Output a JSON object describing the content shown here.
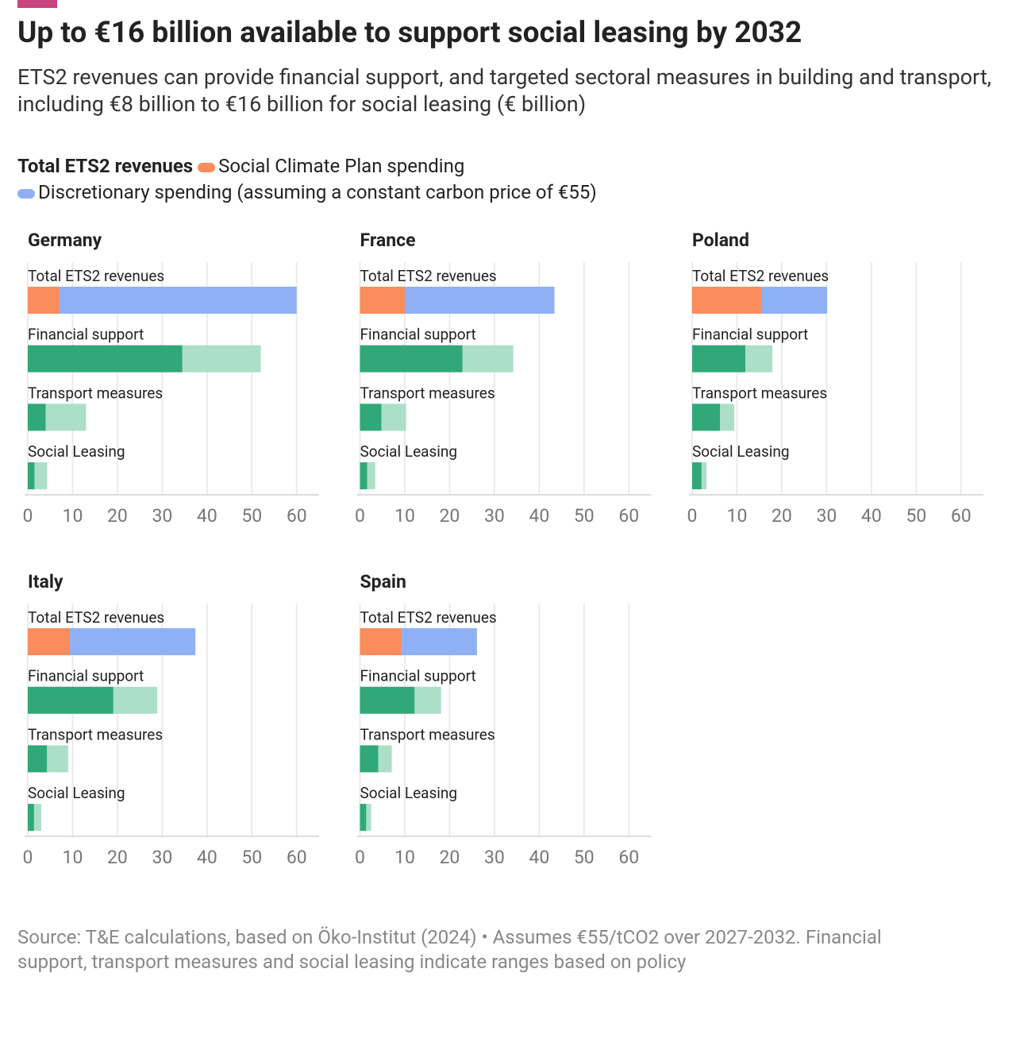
{
  "title": "Up to €16 billion available to support social leasing by 2032",
  "subtitle": "ETS2 revenues can provide financial support, and targeted sectoral measures in building and transport, including €8 billion to €16 billion for social leasing (€ billion)",
  "legend_title": "Total ETS2 revenues",
  "source": "Source: T&E calculations, based on Öko-Institut (2024) • Assumes €55/tCO2 over 2027-2032. Financial support, transport measures and social leasing indicate ranges based on policy",
  "chart_data": [
    {
      "type": "bar",
      "orientation": "horizontal",
      "title": "Germany",
      "categories": [
        "Total ETS2 revenues",
        "Financial support",
        "Transport measures",
        "Social Leasing"
      ],
      "series": [
        {
          "name": "Social Climate Plan spending",
          "color": "#fb8c5c",
          "values": [
            7,
            null,
            null,
            null
          ]
        },
        {
          "name": "Discretionary spending (assuming a constant carbon price of €55)",
          "color": "#8fb0f5",
          "values": [
            53,
            null,
            null,
            null
          ]
        },
        {
          "color": "#30a878",
          "values": [
            null,
            34.5,
            4,
            1.5
          ]
        },
        {
          "color": "#acdfc8",
          "values": [
            null,
            17.5,
            9,
            2.8
          ]
        }
      ],
      "xlim": [
        0,
        65
      ],
      "xticks": [
        0,
        10,
        20,
        30,
        40,
        50,
        60
      ],
      "grid": true
    },
    {
      "type": "bar",
      "orientation": "horizontal",
      "title": "France",
      "categories": [
        "Total ETS2 revenues",
        "Financial support",
        "Transport measures",
        "Social Leasing"
      ],
      "series": [
        {
          "name": "Social Climate Plan spending",
          "color": "#fb8c5c",
          "values": [
            10,
            null,
            null,
            null
          ]
        },
        {
          "name": "Discretionary spending (assuming a constant carbon price of €55)",
          "color": "#8fb0f5",
          "values": [
            33.4,
            null,
            null,
            null
          ]
        },
        {
          "color": "#30a878",
          "values": [
            null,
            22.9,
            4.8,
            1.6
          ]
        },
        {
          "color": "#acdfc8",
          "values": [
            null,
            11.3,
            5.5,
            1.8
          ]
        }
      ],
      "xlim": [
        0,
        65
      ],
      "xticks": [
        0,
        10,
        20,
        30,
        40,
        50,
        60
      ],
      "grid": true
    },
    {
      "type": "bar",
      "orientation": "horizontal",
      "title": "Poland",
      "categories": [
        "Total ETS2 revenues",
        "Financial support",
        "Transport measures",
        "Social Leasing"
      ],
      "series": [
        {
          "name": "Social Climate Plan spending",
          "color": "#fb8c5c",
          "values": [
            15.4,
            null,
            null,
            null
          ]
        },
        {
          "name": "Discretionary spending (assuming a constant carbon price of €55)",
          "color": "#8fb0f5",
          "values": [
            14.7,
            null,
            null,
            null
          ]
        },
        {
          "color": "#30a878",
          "values": [
            null,
            11.9,
            6.2,
            2.1
          ]
        },
        {
          "color": "#acdfc8",
          "values": [
            null,
            6,
            3.2,
            1.1
          ]
        }
      ],
      "xlim": [
        0,
        65
      ],
      "xticks": [
        0,
        10,
        20,
        30,
        40,
        50,
        60
      ],
      "grid": true
    },
    {
      "type": "bar",
      "orientation": "horizontal",
      "title": "Italy",
      "categories": [
        "Total ETS2 revenues",
        "Financial support",
        "Transport measures",
        "Social Leasing"
      ],
      "series": [
        {
          "name": "Social Climate Plan spending",
          "color": "#fb8c5c",
          "values": [
            9.4,
            null,
            null,
            null
          ]
        },
        {
          "name": "Discretionary spending (assuming a constant carbon price of €55)",
          "color": "#8fb0f5",
          "values": [
            28,
            null,
            null,
            null
          ]
        },
        {
          "color": "#30a878",
          "values": [
            null,
            19.1,
            4.3,
            1.4
          ]
        },
        {
          "color": "#acdfc8",
          "values": [
            null,
            9.8,
            4.7,
            1.6
          ]
        }
      ],
      "xlim": [
        0,
        65
      ],
      "xticks": [
        0,
        10,
        20,
        30,
        40,
        50,
        60
      ],
      "grid": true
    },
    {
      "type": "bar",
      "orientation": "horizontal",
      "title": "Spain",
      "categories": [
        "Total ETS2 revenues",
        "Financial support",
        "Transport measures",
        "Social Leasing"
      ],
      "series": [
        {
          "name": "Social Climate Plan spending",
          "color": "#fb8c5c",
          "values": [
            9.2,
            null,
            null,
            null
          ]
        },
        {
          "name": "Discretionary spending (assuming a constant carbon price of €55)",
          "color": "#8fb0f5",
          "values": [
            16.9,
            null,
            null,
            null
          ]
        },
        {
          "color": "#30a878",
          "values": [
            null,
            12.2,
            4.1,
            1.4
          ]
        },
        {
          "color": "#acdfc8",
          "values": [
            null,
            5.9,
            3,
            1.1
          ]
        }
      ],
      "xlim": [
        0,
        65
      ],
      "xticks": [
        0,
        10,
        20,
        30,
        40,
        50,
        60
      ],
      "grid": true
    }
  ]
}
